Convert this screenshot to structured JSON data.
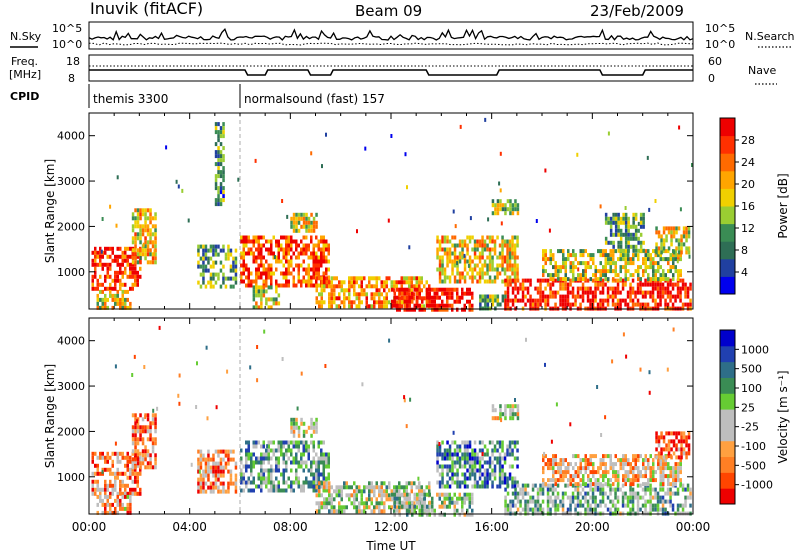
{
  "header": {
    "station": "Inuvik (fitACF)",
    "beam": "Beam 09",
    "date": "23/Feb/2009"
  },
  "summary_panels": {
    "nsky": {
      "label": "N.Sky",
      "ticks": [
        "10^5",
        "10^0"
      ]
    },
    "nsearch": {
      "label": "N.Search",
      "ticks": [
        "10^5",
        "10^0"
      ]
    },
    "freq": {
      "label_line1": "Freq.",
      "label_line2": "[MHz]",
      "ticks": [
        "18",
        "8"
      ]
    },
    "nave": {
      "label": "Nave",
      "ticks": [
        "60",
        "0"
      ]
    },
    "cpid": {
      "label": "CPID",
      "segments": [
        {
          "start_hour": 0,
          "end_hour": 6,
          "text": "themis 3300"
        },
        {
          "start_hour": 6,
          "end_hour": 24,
          "text": "normalsound (fast) 157"
        }
      ]
    }
  },
  "colors": {
    "power": [
      "#0000ee",
      "#2040a0",
      "#2e6e55",
      "#3a8c54",
      "#9acd32",
      "#f0d000",
      "#ffa500",
      "#ff6a00",
      "#ff3000",
      "#ee0000"
    ],
    "velocity": [
      "#ee0000",
      "#ff4500",
      "#ff7f24",
      "#ffa040",
      "#bebebe",
      "#bebebe",
      "#66cc33",
      "#3a8c54",
      "#2e6e88",
      "#2040b0",
      "#0000cc"
    ]
  },
  "chart_data": [
    {
      "type": "heatmap",
      "title": "Power",
      "ylabel": "Slant Range [km]",
      "xlabel": "",
      "x_unit": "Time UT",
      "xlim": [
        0,
        24
      ],
      "ylim": [
        180,
        4500
      ],
      "x_ticks": [],
      "y_ticks": [
        1000,
        2000,
        3000,
        4000
      ],
      "y_tick_labels": [
        "1000",
        "2000",
        "3000",
        "4000"
      ],
      "colorbar": {
        "label": "Power [dB]",
        "ticks": [
          "4",
          "8",
          "12",
          "16",
          "20",
          "24",
          "28"
        ],
        "range": [
          0,
          30
        ]
      },
      "regions": [
        {
          "t0": 0.1,
          "t1": 2.0,
          "r0": 600,
          "r1": 1550,
          "level": 0.85
        },
        {
          "t0": 0.3,
          "t1": 1.6,
          "r0": 200,
          "r1": 600,
          "level": 0.55
        },
        {
          "t0": 1.7,
          "t1": 2.6,
          "r0": 1200,
          "r1": 2400,
          "level": 0.6
        },
        {
          "t0": 4.3,
          "t1": 5.8,
          "r0": 700,
          "r1": 1600,
          "level": 0.35
        },
        {
          "t0": 5.0,
          "t1": 5.3,
          "r0": 2500,
          "r1": 4300,
          "level": 0.3
        },
        {
          "t0": 6.0,
          "t1": 9.5,
          "r0": 700,
          "r1": 1800,
          "level": 0.8
        },
        {
          "t0": 6.5,
          "t1": 7.5,
          "r0": 200,
          "r1": 700,
          "level": 0.5
        },
        {
          "t0": 8.0,
          "t1": 9.0,
          "r0": 1900,
          "r1": 2300,
          "level": 0.55
        },
        {
          "t0": 9.0,
          "t1": 13.5,
          "r0": 200,
          "r1": 900,
          "level": 0.7
        },
        {
          "t0": 12.0,
          "t1": 15.2,
          "r0": 200,
          "r1": 650,
          "level": 0.95
        },
        {
          "t0": 13.8,
          "t1": 17.0,
          "r0": 800,
          "r1": 1800,
          "level": 0.6
        },
        {
          "t0": 16.0,
          "t1": 17.0,
          "r0": 2300,
          "r1": 2600,
          "level": 0.45
        },
        {
          "t0": 15.5,
          "t1": 16.5,
          "r0": 200,
          "r1": 500,
          "level": 0.4
        },
        {
          "t0": 16.5,
          "t1": 23.9,
          "r0": 200,
          "r1": 850,
          "level": 0.9
        },
        {
          "t0": 18.0,
          "t1": 23.5,
          "r0": 850,
          "r1": 1500,
          "level": 0.5
        },
        {
          "t0": 22.5,
          "t1": 23.8,
          "r0": 1400,
          "r1": 2000,
          "level": 0.55
        },
        {
          "t0": 20.5,
          "t1": 22.0,
          "r0": 1500,
          "r1": 2300,
          "level": 0.35
        }
      ]
    },
    {
      "type": "heatmap",
      "title": "Velocity",
      "ylabel": "Slant Range [km]",
      "xlabel": "Time UT",
      "xlim": [
        0,
        24
      ],
      "ylim": [
        180,
        4500
      ],
      "x_ticks": [
        0,
        4,
        8,
        12,
        16,
        20,
        24
      ],
      "x_tick_labels": [
        "00:00",
        "04:00",
        "08:00",
        "12:00",
        "16:00",
        "20:00",
        "00:00"
      ],
      "y_ticks": [
        1000,
        2000,
        3000,
        4000
      ],
      "y_tick_labels": [
        "1000",
        "2000",
        "3000",
        "4000"
      ],
      "colorbar": {
        "label": "Velocity  [m s⁻¹]",
        "ticks": [
          "1000",
          "500",
          "100",
          "25",
          "-25",
          "-100",
          "-500",
          "-1000"
        ],
        "range": [
          -1000,
          1000
        ]
      },
      "regions": [
        {
          "t0": 0.1,
          "t1": 2.0,
          "r0": 600,
          "r1": 1550,
          "level": 0.25
        },
        {
          "t0": 0.3,
          "t1": 1.6,
          "r0": 200,
          "r1": 600,
          "level": 0.3
        },
        {
          "t0": 1.7,
          "t1": 2.6,
          "r0": 1200,
          "r1": 2400,
          "level": 0.2
        },
        {
          "t0": 4.3,
          "t1": 5.8,
          "r0": 700,
          "r1": 1600,
          "level": 0.25
        },
        {
          "t0": 6.0,
          "t1": 9.5,
          "r0": 700,
          "r1": 1800,
          "level": 0.65
        },
        {
          "t0": 8.0,
          "t1": 9.0,
          "r0": 1900,
          "r1": 2300,
          "level": 0.45
        },
        {
          "t0": 9.0,
          "t1": 13.5,
          "r0": 200,
          "r1": 900,
          "level": 0.5
        },
        {
          "t0": 12.0,
          "t1": 15.2,
          "r0": 200,
          "r1": 650,
          "level": 0.55
        },
        {
          "t0": 13.8,
          "t1": 17.0,
          "r0": 800,
          "r1": 1800,
          "level": 0.7
        },
        {
          "t0": 16.0,
          "t1": 17.0,
          "r0": 2300,
          "r1": 2600,
          "level": 0.45
        },
        {
          "t0": 16.5,
          "t1": 23.9,
          "r0": 200,
          "r1": 850,
          "level": 0.6
        },
        {
          "t0": 18.0,
          "t1": 23.5,
          "r0": 850,
          "r1": 1500,
          "level": 0.35
        },
        {
          "t0": 22.5,
          "t1": 23.8,
          "r0": 1400,
          "r1": 2000,
          "level": 0.15
        }
      ]
    }
  ]
}
